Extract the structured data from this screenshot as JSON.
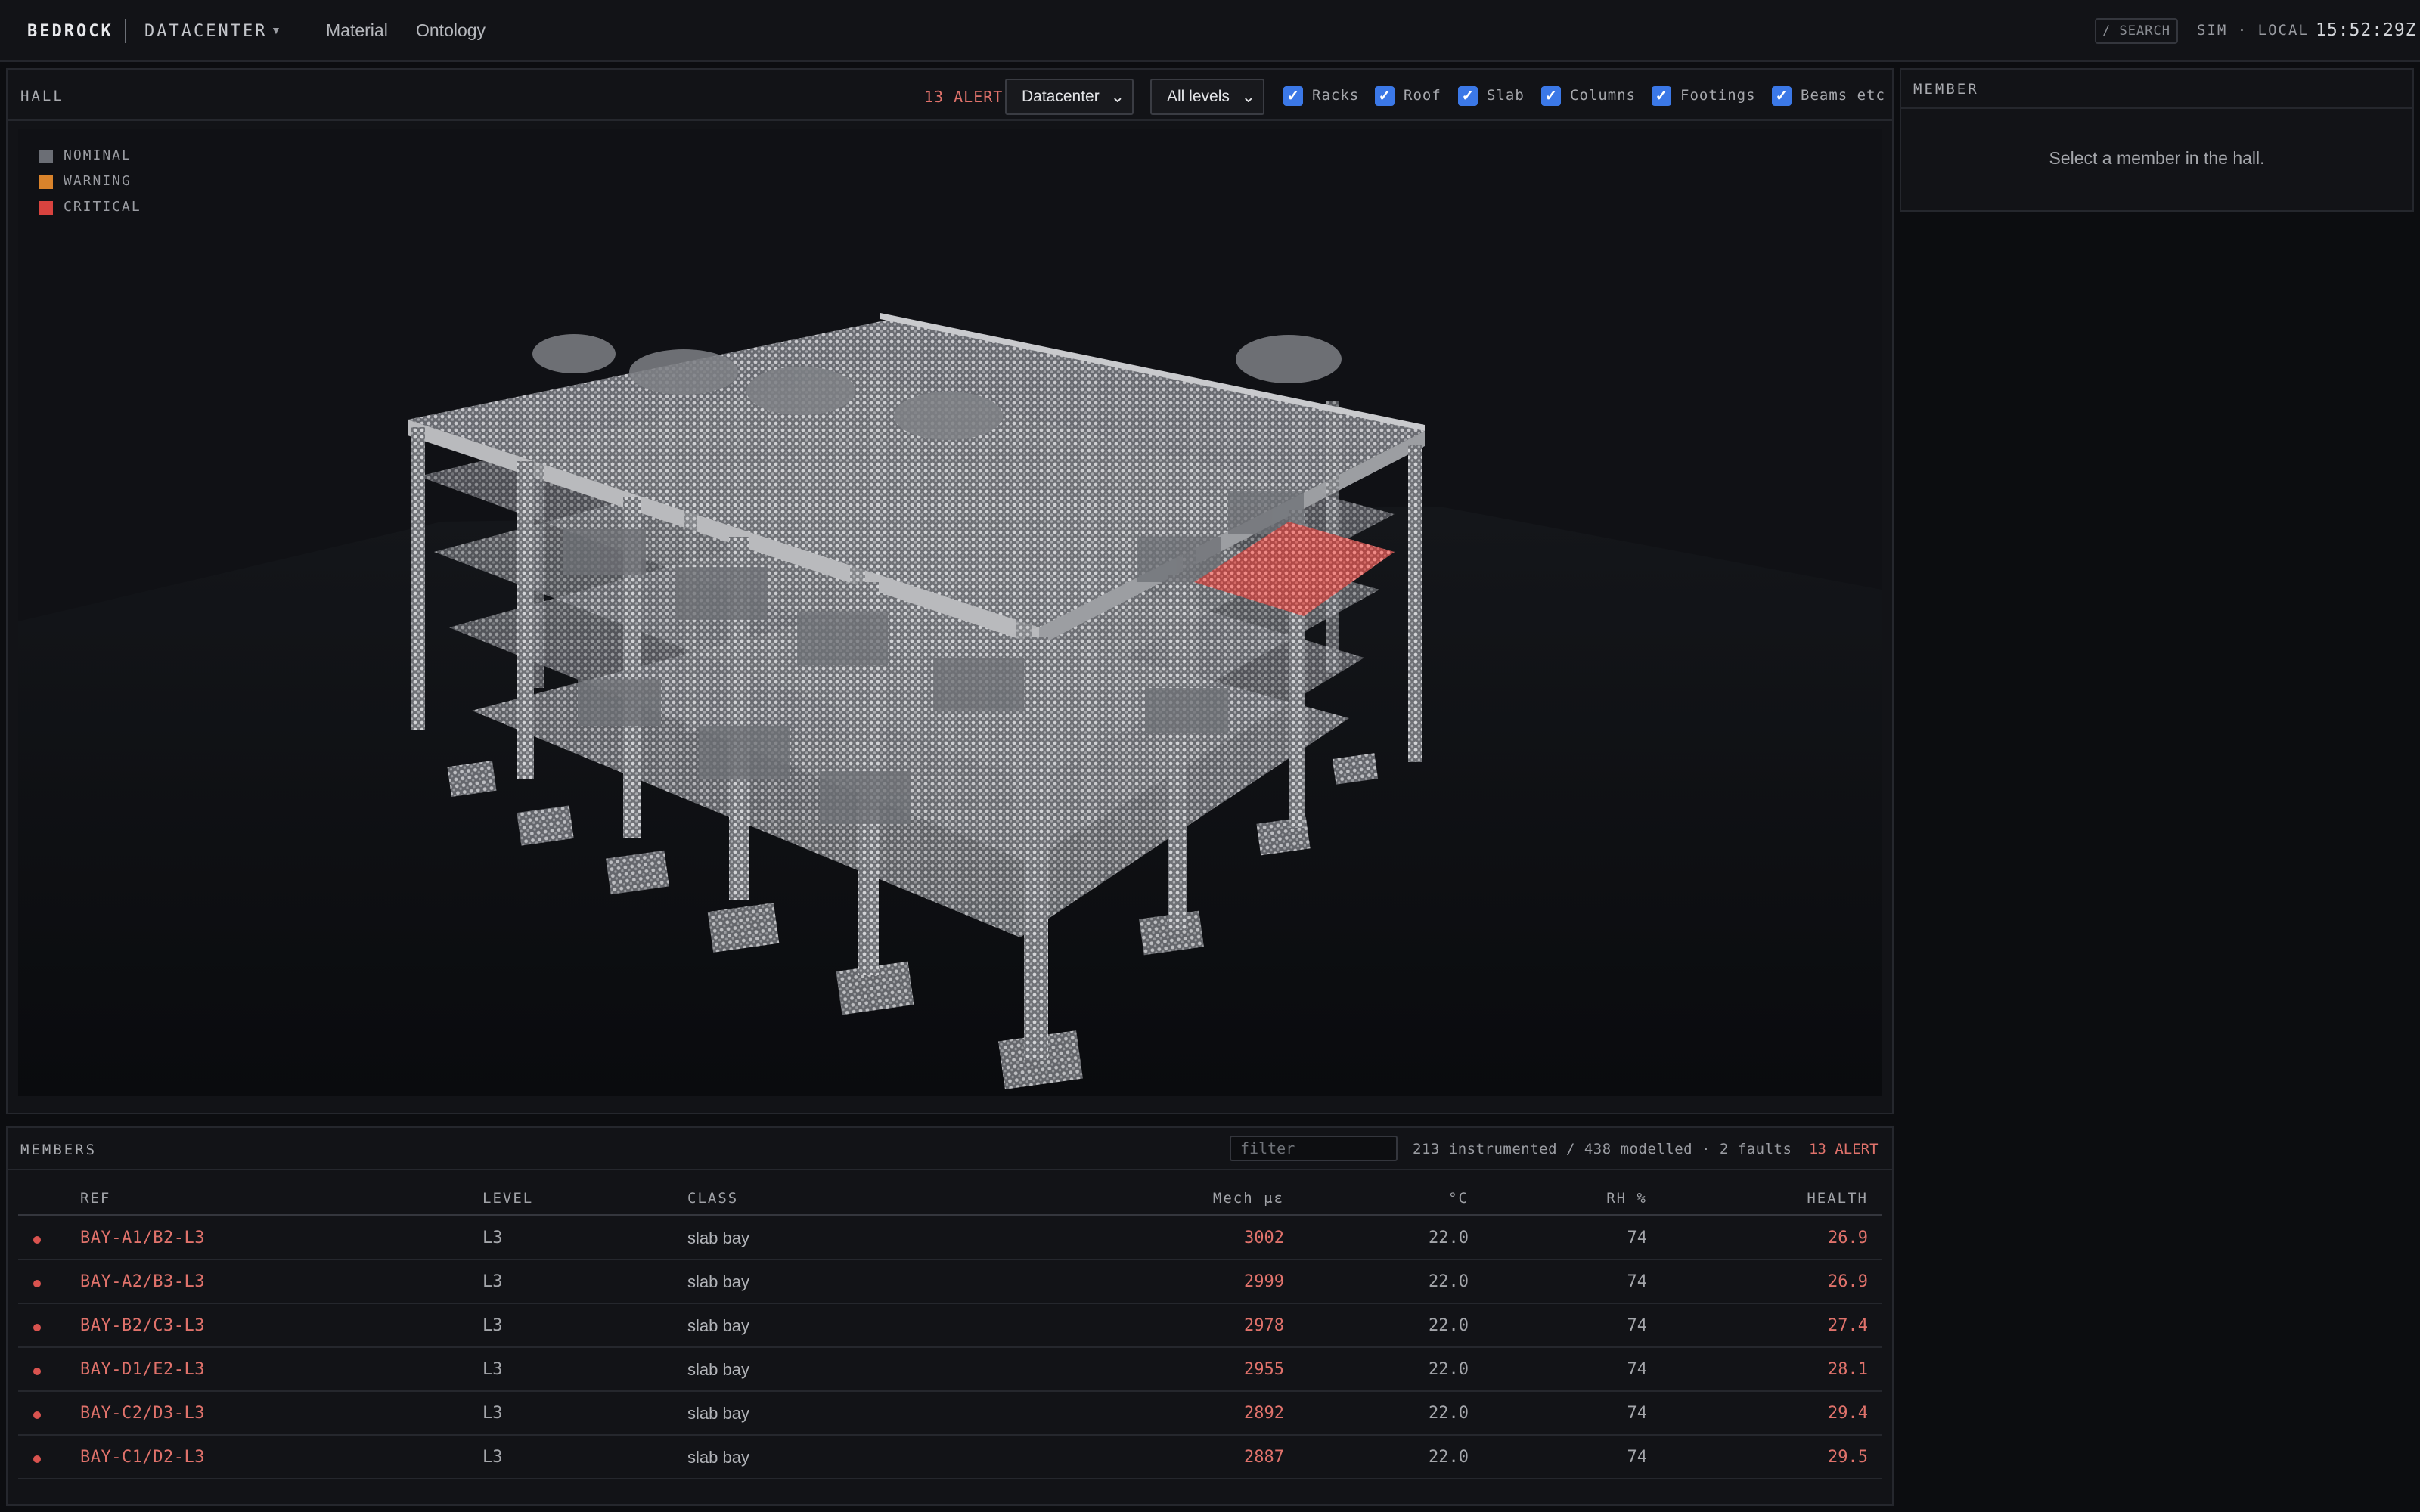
{
  "topbar": {
    "brand": "BEDROCK",
    "context": "DATACENTER",
    "context_caret": "▼",
    "nav": [
      "Material",
      "Ontology"
    ],
    "search_label": "/ SEARCH",
    "mode": "SIM · LOCAL",
    "clock": "15:52:29Z"
  },
  "hall": {
    "title": "HALL",
    "alert": "13 ALERT",
    "scope_select": "Datacenter",
    "level_select": "All levels",
    "layers": [
      {
        "label": "Racks",
        "checked": true
      },
      {
        "label": "Roof",
        "checked": true
      },
      {
        "label": "Slab",
        "checked": true
      },
      {
        "label": "Columns",
        "checked": true
      },
      {
        "label": "Footings",
        "checked": true
      },
      {
        "label": "Beams etc",
        "checked": true
      }
    ],
    "legend": [
      {
        "label": "NOMINAL",
        "color": "#6b6e75"
      },
      {
        "label": "WARNING",
        "color": "#d9832b"
      },
      {
        "label": "CRITICAL",
        "color": "#d9433f"
      }
    ]
  },
  "member": {
    "title": "MEMBER",
    "empty": "Select a member in the hall."
  },
  "members": {
    "title": "MEMBERS",
    "filter_placeholder": "filter",
    "summary": "213 instrumented / 438 modelled · 2 faults",
    "alert": "13 ALERT",
    "columns": [
      "REF",
      "LEVEL",
      "CLASS",
      "Mech με",
      "°C",
      "RH %",
      "HEALTH"
    ],
    "rows": [
      {
        "ref": "BAY-A1/B2-L3",
        "level": "L3",
        "class": "slab bay",
        "mech": "3002",
        "temp": "22.0",
        "rh": "74",
        "health": "26.9"
      },
      {
        "ref": "BAY-A2/B3-L3",
        "level": "L3",
        "class": "slab bay",
        "mech": "2999",
        "temp": "22.0",
        "rh": "74",
        "health": "26.9"
      },
      {
        "ref": "BAY-B2/C3-L3",
        "level": "L3",
        "class": "slab bay",
        "mech": "2978",
        "temp": "22.0",
        "rh": "74",
        "health": "27.4"
      },
      {
        "ref": "BAY-D1/E2-L3",
        "level": "L3",
        "class": "slab bay",
        "mech": "2955",
        "temp": "22.0",
        "rh": "74",
        "health": "28.1"
      },
      {
        "ref": "BAY-C2/D3-L3",
        "level": "L3",
        "class": "slab bay",
        "mech": "2892",
        "temp": "22.0",
        "rh": "74",
        "health": "29.4"
      },
      {
        "ref": "BAY-C1/D2-L3",
        "level": "L3",
        "class": "slab bay",
        "mech": "2887",
        "temp": "22.0",
        "rh": "74",
        "health": "29.5"
      }
    ]
  }
}
